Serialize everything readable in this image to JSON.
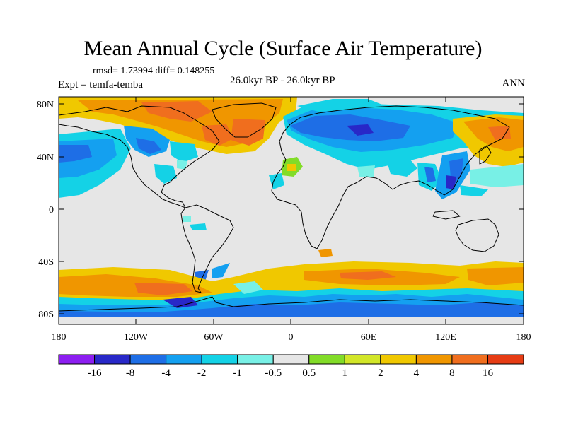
{
  "title": "Mean Annual Cycle (Surface Air Temperature)",
  "stats": "rmsd= 1.73994 diff= 0.148255",
  "experiment": "Expt = temfa-temba",
  "period": "26.0kyr BP - 26.0kyr BP",
  "season": "ANN",
  "lat_labels": [
    "80N",
    "40N",
    "0",
    "40S",
    "80S"
  ],
  "lon_labels": [
    "180",
    "120W",
    "60W",
    "0",
    "60E",
    "120E",
    "180"
  ],
  "colorbar": {
    "labels": [
      "-16",
      "-8",
      "-4",
      "-2",
      "-1",
      "-0.5",
      "0.5",
      "1",
      "2",
      "4",
      "8",
      "16"
    ],
    "colors": [
      "#8c1ef0",
      "#2828c8",
      "#1e6ee6",
      "#14a0f0",
      "#14d2e6",
      "#78f0e6",
      "#e6e6e6",
      "#82dc28",
      "#d2e628",
      "#f0c800",
      "#f09600",
      "#f06e1e",
      "#e63c14"
    ]
  }
}
